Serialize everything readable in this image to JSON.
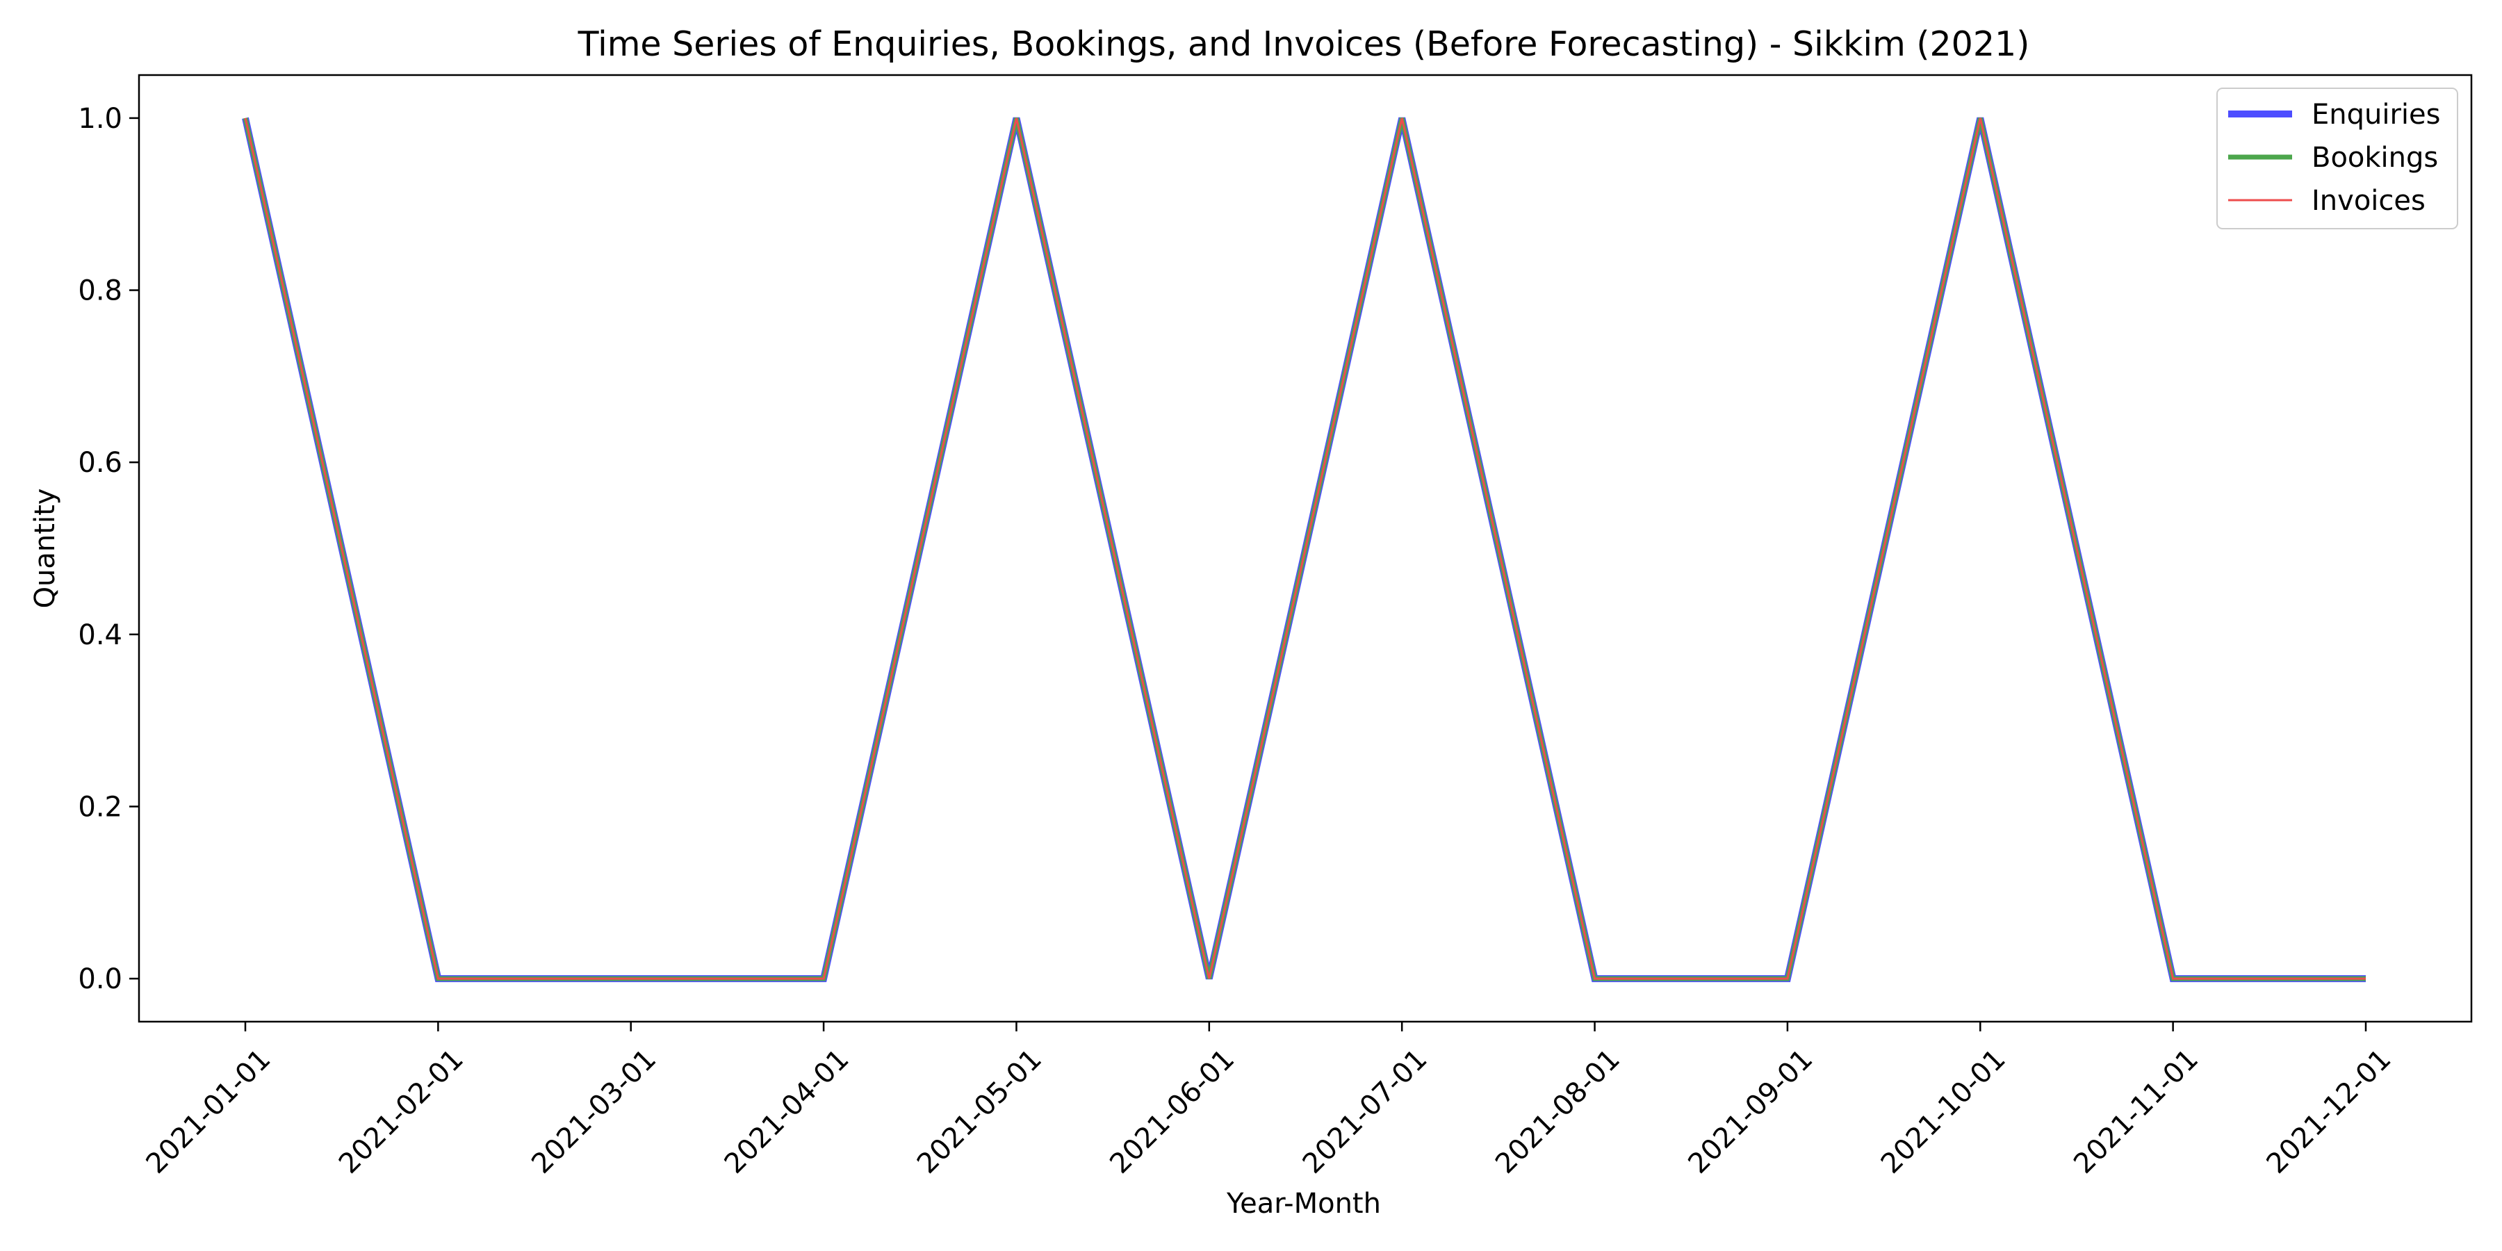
{
  "chart_data": {
    "type": "line",
    "title": "Time Series of Enquiries, Bookings, and Invoices (Before Forecasting) - Sikkim (2021)",
    "xlabel": "Year-Month",
    "ylabel": "Quantity",
    "x": [
      "2021-01-01",
      "2021-02-01",
      "2021-03-01",
      "2021-04-01",
      "2021-05-01",
      "2021-06-01",
      "2021-07-01",
      "2021-08-01",
      "2021-09-01",
      "2021-10-01",
      "2021-11-01",
      "2021-12-01"
    ],
    "yticks": [
      "0.0",
      "0.2",
      "0.4",
      "0.6",
      "0.8",
      "1.0"
    ],
    "ylim": [
      -0.05,
      1.05
    ],
    "grid": false,
    "legend_position": "top-right",
    "series": [
      {
        "name": "Enquiries",
        "color": "#4d4dff",
        "values": [
          1,
          0,
          0,
          0,
          1,
          0,
          1,
          0,
          0,
          1,
          0,
          0
        ]
      },
      {
        "name": "Bookings",
        "color": "#4ca64c",
        "values": [
          1,
          0,
          0,
          0,
          1,
          0,
          1,
          0,
          0,
          1,
          0,
          0
        ]
      },
      {
        "name": "Invoices",
        "color": "#ee4d4d",
        "values": [
          1,
          0,
          0,
          0,
          1,
          0,
          1,
          0,
          0,
          1,
          0,
          0
        ]
      }
    ]
  }
}
